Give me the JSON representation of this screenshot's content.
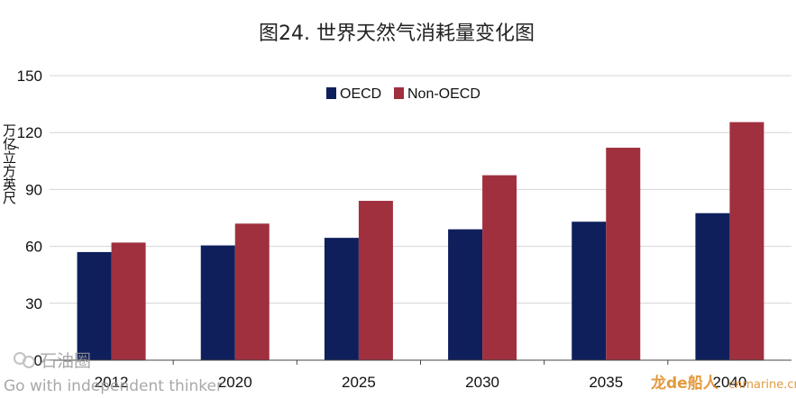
{
  "chart_data": {
    "type": "bar",
    "title": "图24. 世界天然气消耗量变化图",
    "xlabel": "",
    "ylabel": "万亿立方英尺",
    "ylabel_prefix": "/",
    "categories": [
      "2012",
      "2020",
      "2025",
      "2030",
      "2035",
      "2040"
    ],
    "series": [
      {
        "name": "OECD",
        "color": "#0f1f5c",
        "values": [
          57,
          60.5,
          64.5,
          69,
          73,
          77.5
        ]
      },
      {
        "name": "Non-OECD",
        "color": "#a0303e",
        "values": [
          62,
          72,
          84,
          97.5,
          112,
          125.5
        ]
      }
    ],
    "ylim": [
      0,
      150
    ],
    "yticks": [
      0,
      30,
      60,
      90,
      120,
      150
    ],
    "ytick_labels": [
      "0",
      "30",
      "60",
      "90",
      "120",
      "150"
    ],
    "grid": true,
    "legend": "top-center"
  },
  "watermarks": {
    "left_logo": "石油圈",
    "left_tagline": "Go with independent thinker",
    "right_logo": "龙de船人",
    "right_url": "cnmarine.cn"
  },
  "colors": {
    "grid": "#d4d4d4",
    "axis": "#444444",
    "watermark": "#9a9a9a",
    "watermark_accent": "#e0902a"
  }
}
